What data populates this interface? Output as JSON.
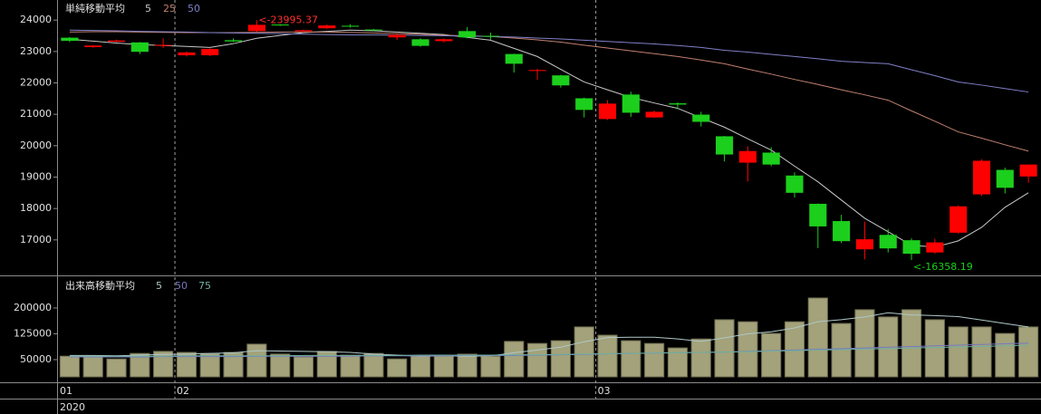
{
  "chart_data": [
    {
      "type": "candlestick",
      "title": "単純移動平均",
      "categories": [
        "01",
        null,
        null,
        null,
        null,
        "02",
        null,
        null,
        null,
        null,
        null,
        null,
        null,
        null,
        null,
        null,
        null,
        null,
        null,
        null,
        null,
        null,
        null,
        "03",
        null,
        null,
        null,
        null,
        null,
        null,
        null,
        null,
        null,
        null,
        null,
        null,
        null,
        null,
        null,
        null,
        null,
        null
      ],
      "open": [
        23440,
        23140,
        23310,
        23290,
        23180,
        22880,
        22880,
        23360,
        23650,
        23860,
        23640,
        23740,
        23820,
        23700,
        23450,
        23390,
        23330,
        23650,
        23500,
        22920,
        22380,
        22240,
        21510,
        20850,
        21630,
        20900,
        21350,
        20990,
        20300,
        19460,
        19780,
        19050,
        18150,
        17600,
        16700,
        17160,
        16990,
        16600,
        17230,
        18450,
        19230,
        19020
      ],
      "high": [
        23460,
        23200,
        23380,
        23300,
        23420,
        23000,
        23100,
        23420,
        23995.37,
        23870,
        23700,
        23860,
        23870,
        23720,
        23560,
        23420,
        23420,
        23780,
        23600,
        22930,
        22450,
        22260,
        21530,
        21450,
        21720,
        21120,
        21380,
        21080,
        20310,
        19980,
        19950,
        19150,
        18160,
        17800,
        17580,
        17350,
        17050,
        17040,
        18100,
        19570,
        19300,
        19400
      ],
      "low": [
        23300,
        23120,
        23300,
        22920,
        23110,
        22840,
        22850,
        23300,
        23630,
        23810,
        23610,
        23720,
        23760,
        23640,
        23370,
        23150,
        23290,
        23420,
        23380,
        22330,
        22100,
        21850,
        20900,
        20820,
        20920,
        20880,
        21160,
        20610,
        19500,
        18860,
        19350,
        18350,
        16740,
        16900,
        16380,
        16600,
        16358.19,
        16560,
        17200,
        18400,
        18480,
        18820
      ],
      "close": [
        23340,
        23190,
        23350,
        22990,
        23210,
        22970,
        23080,
        23320,
        23850,
        23830,
        23680,
        23830,
        23790,
        23680,
        23530,
        23180,
        23390,
        23450,
        23480,
        22610,
        22410,
        21920,
        21140,
        21340,
        21050,
        21080,
        21310,
        20760,
        19720,
        19830,
        19400,
        18500,
        17430,
        16960,
        17020,
        16730,
        16560,
        16920,
        18070,
        19520,
        18660,
        19400
      ],
      "up_color": "#ff0000",
      "down_color": "#1ccf1c",
      "series": [
        {
          "name": "5",
          "color": "#c8c8c8",
          "values": [
            23390,
            23330,
            23270,
            23220,
            23190,
            23160,
            23130,
            23250,
            23420,
            23510,
            23600,
            23640,
            23680,
            23660,
            23620,
            23580,
            23540,
            23450,
            23360,
            23100,
            22840,
            22430,
            22030,
            21780,
            21540,
            21360,
            21190,
            20890,
            20590,
            20220,
            19860,
            19350,
            18850,
            18270,
            17690,
            17260,
            16830,
            16770,
            16970,
            17400,
            18040,
            18500
          ]
        },
        {
          "name": "25",
          "color": "#c08070",
          "values": [
            23620,
            23630,
            23630,
            23620,
            23610,
            23600,
            23600,
            23600,
            23610,
            23620,
            23620,
            23620,
            23610,
            23590,
            23570,
            23550,
            23520,
            23500,
            23480,
            23430,
            23370,
            23300,
            23200,
            23110,
            23020,
            22930,
            22840,
            22730,
            22610,
            22440,
            22280,
            22110,
            21950,
            21780,
            21620,
            21450,
            21110,
            20780,
            20440,
            20240,
            20030,
            19830
          ]
        },
        {
          "name": "50",
          "color": "#8080c8",
          "values": [
            23680,
            23670,
            23660,
            23640,
            23630,
            23620,
            23600,
            23590,
            23580,
            23570,
            23550,
            23540,
            23530,
            23530,
            23520,
            23510,
            23500,
            23490,
            23480,
            23460,
            23430,
            23400,
            23360,
            23320,
            23280,
            23240,
            23190,
            23130,
            23040,
            22980,
            22910,
            22840,
            22770,
            22690,
            22650,
            22610,
            22420,
            22230,
            22030,
            21930,
            21820,
            21710
          ]
        }
      ],
      "ylim": [
        15870,
        24640
      ],
      "yticks": [
        17000,
        18000,
        19000,
        20000,
        21000,
        22000,
        23000,
        24000
      ],
      "annotations": [
        {
          "text": "<-23995.37",
          "value": 23995.37,
          "color": "#ff3030",
          "at": "high"
        },
        {
          "text": "<-16358.19",
          "value": 16358.19,
          "color": "#1ccf1c",
          "at": "low"
        }
      ]
    },
    {
      "type": "bar",
      "title": "出来高移動平均",
      "color": "#a3a27a",
      "xlabel": "2020",
      "values": [
        60000,
        60000,
        52000,
        68000,
        74000,
        71000,
        68000,
        71000,
        95000,
        66000,
        58000,
        74000,
        63000,
        68000,
        52000,
        60000,
        60000,
        66000,
        60000,
        103000,
        97000,
        105000,
        145000,
        121000,
        105000,
        97000,
        84000,
        110000,
        166000,
        160000,
        126000,
        160000,
        229000,
        155000,
        195000,
        174000,
        195000,
        166000,
        145000,
        145000,
        126000,
        145000
      ],
      "series": [
        {
          "name": "5",
          "color": "#b0c8c8",
          "values": [
            62000,
            62000,
            61000,
            63000,
            65000,
            66000,
            68000,
            70000,
            76000,
            75000,
            74000,
            73000,
            71000,
            66000,
            63000,
            60000,
            61000,
            60000,
            61000,
            70000,
            78000,
            86000,
            102000,
            114000,
            115000,
            115000,
            110000,
            103000,
            113000,
            125000,
            131000,
            142000,
            160000,
            166000,
            174000,
            186000,
            180000,
            178000,
            175000,
            165000,
            155000,
            145000
          ]
        },
        {
          "name": "50",
          "color": "#7878c0",
          "values": [
            58000,
            58000,
            58000,
            58000,
            59000,
            59000,
            59000,
            59000,
            60000,
            60000,
            60000,
            60000,
            60000,
            61000,
            61000,
            61000,
            61000,
            62000,
            62000,
            62000,
            63000,
            64000,
            65000,
            67000,
            68000,
            69000,
            70000,
            71000,
            72000,
            74000,
            76000,
            78000,
            80000,
            82000,
            84000,
            86000,
            88000,
            90000,
            92000,
            94000,
            96000,
            98000
          ]
        },
        {
          "name": "75",
          "color": "#70b0a0",
          "values": [
            60000,
            60000,
            60000,
            60000,
            60000,
            61000,
            61000,
            61000,
            61000,
            61000,
            62000,
            62000,
            62000,
            62000,
            62000,
            63000,
            63000,
            63000,
            63000,
            64000,
            64000,
            65000,
            66000,
            67000,
            68000,
            69000,
            70000,
            71000,
            72000,
            73000,
            75000,
            76000,
            78000,
            79000,
            81000,
            82000,
            84000,
            85000,
            87000,
            88000,
            90000,
            92000
          ]
        }
      ],
      "ylim": [
        0,
        292000
      ],
      "yticks": [
        50000,
        125000,
        200000
      ]
    }
  ]
}
